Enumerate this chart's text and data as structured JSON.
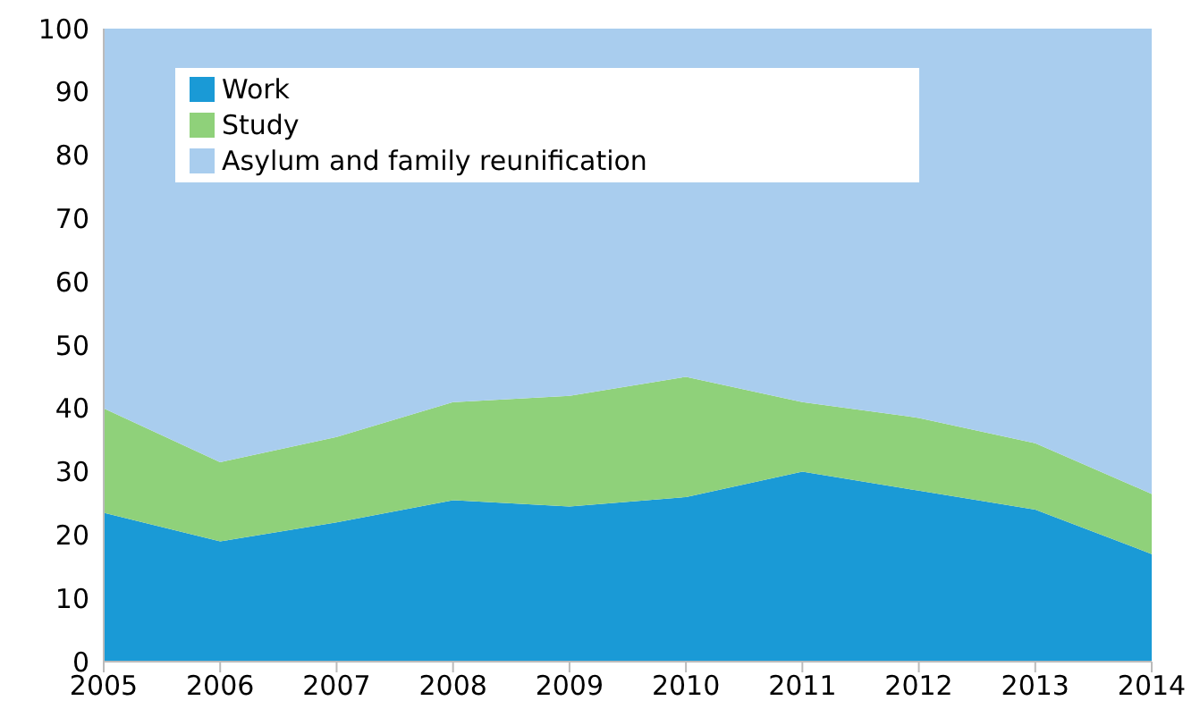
{
  "chart_data": {
    "type": "area",
    "stacked": true,
    "x": [
      2005,
      2006,
      2007,
      2008,
      2009,
      2010,
      2011,
      2012,
      2013,
      2014
    ],
    "xlim": [
      2005,
      2014
    ],
    "xticks": [
      2005,
      2006,
      2007,
      2008,
      2009,
      2010,
      2011,
      2012,
      2013,
      2014
    ],
    "ylim": [
      0,
      100
    ],
    "yticks": [
      0,
      10,
      20,
      30,
      40,
      50,
      60,
      70,
      80,
      90,
      100
    ],
    "legend": "top",
    "grid": false,
    "series": [
      {
        "name": "Work",
        "color": "#1a9ad6",
        "values": [
          23.5,
          19,
          22,
          25.5,
          24.5,
          26,
          30,
          27,
          24,
          17
        ]
      },
      {
        "name": "Study",
        "color": "#8fd17a",
        "values": [
          16.5,
          12.5,
          13.5,
          15.5,
          17.5,
          19,
          11,
          11.5,
          10.5,
          9.5
        ]
      },
      {
        "name": "Asylum and family reunification",
        "color": "#a9cdee",
        "values": [
          60,
          68.5,
          64.5,
          59,
          58,
          55,
          59,
          61.5,
          65.5,
          73.5
        ]
      }
    ]
  }
}
